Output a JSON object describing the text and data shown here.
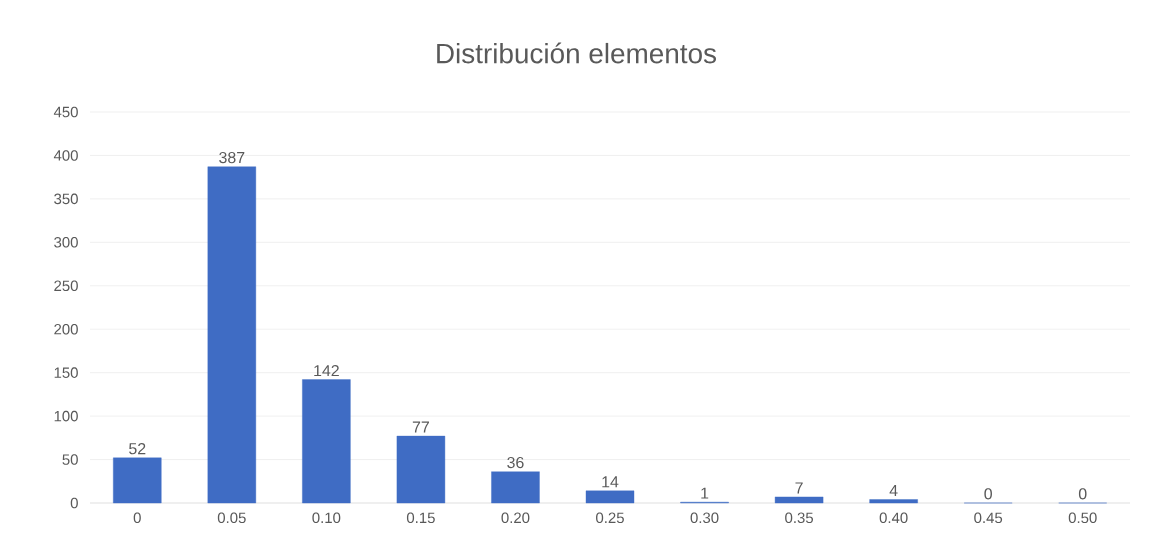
{
  "chart_data": {
    "type": "bar",
    "title": "Distribución elementos",
    "categories": [
      "0",
      "0.05",
      "0.10",
      "0.15",
      "0.20",
      "0.25",
      "0.30",
      "0.35",
      "0.40",
      "0.45",
      "0.50"
    ],
    "values": [
      52,
      387,
      142,
      77,
      36,
      14,
      1,
      7,
      4,
      0,
      0
    ],
    "color": "#3f6cc4",
    "ylim": [
      0,
      450
    ],
    "yticks": [
      0,
      50,
      100,
      150,
      200,
      250,
      300,
      350,
      400,
      450
    ],
    "grid": "y",
    "data_labels": true
  }
}
